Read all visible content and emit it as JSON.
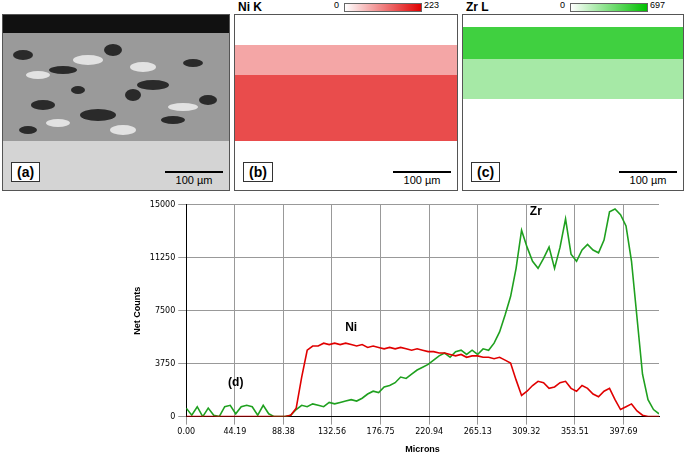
{
  "panels": [
    {
      "label": "(a)",
      "scale_bar": "100 µm"
    },
    {
      "label": "(b)",
      "element": "Ni K",
      "color": "#e00000",
      "colorbar": {
        "range": [
          0,
          223
        ]
      },
      "scale_bar": "100 µm"
    },
    {
      "label": "(c)",
      "element": "Zr L",
      "color": "#00c000",
      "colorbar": {
        "range": [
          0,
          697
        ]
      },
      "scale_bar": "100 µm"
    }
  ],
  "chart_data": {
    "type": "line",
    "x_label": "Microns",
    "y_label": "Net Counts",
    "grid": true,
    "x": [
      0,
      5,
      10,
      15,
      20,
      25,
      30,
      35,
      40,
      45,
      50,
      55,
      60,
      65,
      70,
      75,
      80,
      85,
      90,
      95,
      100,
      105,
      110,
      115,
      120,
      125,
      130,
      135,
      140,
      145,
      150,
      155,
      160,
      165,
      170,
      175,
      180,
      185,
      190,
      195,
      200,
      205,
      210,
      215,
      220,
      225,
      230,
      235,
      240,
      245,
      250,
      255,
      260,
      265,
      270,
      275,
      280,
      285,
      290,
      295,
      300,
      305,
      310,
      315,
      320,
      325,
      330,
      335,
      340,
      345,
      350,
      355,
      360,
      365,
      370,
      375,
      380,
      385,
      390,
      395,
      400,
      405,
      410,
      415,
      420,
      425,
      430
    ],
    "series": [
      {
        "name": "Ni",
        "color": "#e00000",
        "values": [
          0,
          0,
          0,
          0,
          0,
          0,
          0,
          0,
          0,
          0,
          0,
          0,
          0,
          0,
          0,
          0,
          0,
          0,
          0,
          100,
          600,
          2800,
          4700,
          5000,
          5000,
          5200,
          5100,
          5200,
          5100,
          5200,
          5100,
          5000,
          5100,
          4900,
          5000,
          4900,
          4800,
          4900,
          4800,
          4900,
          4800,
          4700,
          4800,
          4700,
          4600,
          4600,
          4500,
          4500,
          4400,
          4300,
          4400,
          4200,
          4300,
          4300,
          4200,
          4200,
          4100,
          4200,
          4000,
          3800,
          2600,
          1500,
          1800,
          2200,
          2500,
          2400,
          2000,
          2100,
          2400,
          2500,
          2000,
          1800,
          2200,
          2000,
          1600,
          1400,
          1800,
          2000,
          1200,
          500,
          700,
          900,
          400,
          100,
          0,
          0,
          0
        ]
      },
      {
        "name": "Zr",
        "color": "#1fa01f",
        "values": [
          600,
          100,
          700,
          0,
          600,
          100,
          0,
          700,
          800,
          200,
          700,
          800,
          700,
          100,
          800,
          200,
          0,
          0,
          0,
          100,
          500,
          800,
          700,
          900,
          800,
          700,
          1000,
          900,
          1000,
          1100,
          1200,
          1100,
          1300,
          1600,
          1800,
          1700,
          2100,
          2200,
          2400,
          2800,
          2700,
          3000,
          3300,
          3500,
          3700,
          4000,
          4300,
          4500,
          4200,
          4600,
          4700,
          4400,
          4700,
          4400,
          4800,
          4700,
          5200,
          6000,
          7200,
          8500,
          10500,
          13200,
          12000,
          11000,
          10500,
          11200,
          12000,
          10500,
          12000,
          14000,
          11500,
          11000,
          11800,
          12200,
          11800,
          11600,
          12500,
          14500,
          14700,
          14300,
          13500,
          11000,
          7000,
          3000,
          1200,
          500,
          200
        ]
      }
    ],
    "xlim": [
      0,
      430
    ],
    "xticks": [
      {
        "value": 0,
        "label": "0.00"
      },
      44.19,
      88.38,
      132.56,
      176.75,
      220.94,
      265.13,
      309.32,
      353.51,
      397.69
    ],
    "ylim": [
      0,
      15000
    ],
    "yticks": [
      0,
      3750,
      7500,
      11250,
      15000
    ],
    "annotations": [
      {
        "text": "Ni",
        "x": 150,
        "y": 5900
      },
      {
        "text": "Zr",
        "x": 318,
        "y": 14100
      },
      {
        "text": "(d)",
        "x": 45,
        "y": 2000
      }
    ]
  }
}
